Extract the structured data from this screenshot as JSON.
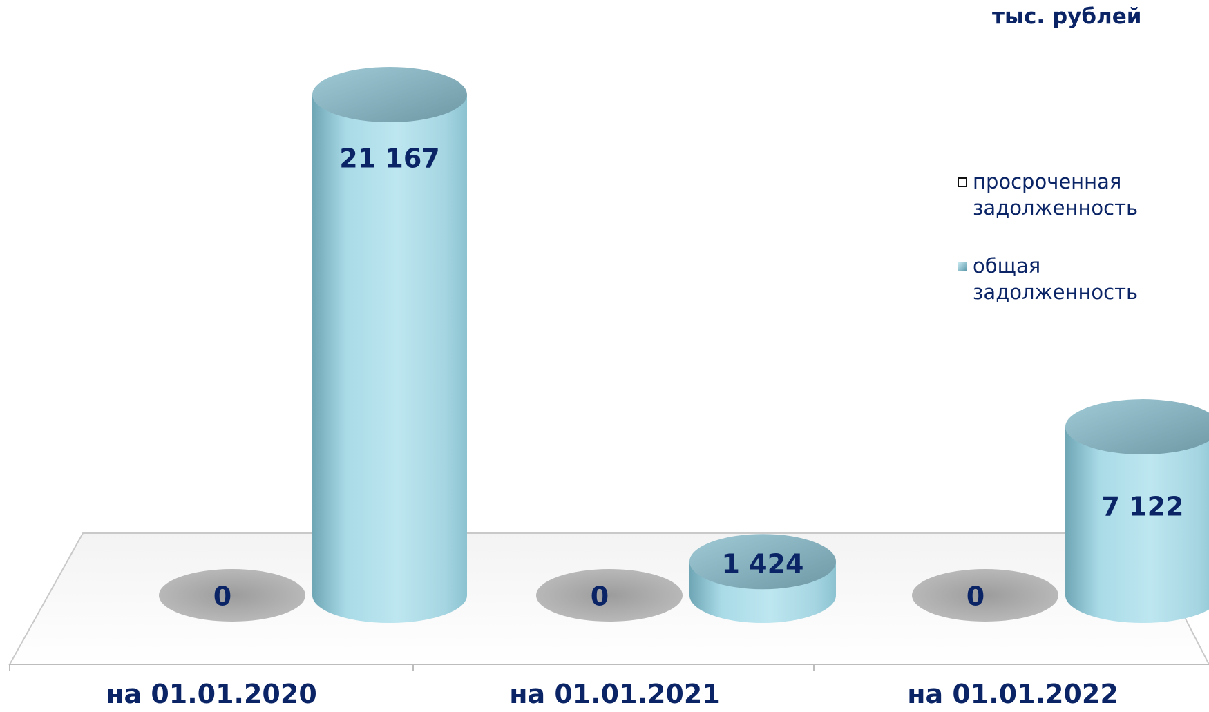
{
  "unit_label": "тыс. рублей",
  "chart_data": {
    "type": "bar",
    "style": "3d-cylinder",
    "categories": [
      "на 01.01.2020",
      "на 01.01.2021",
      "на 01.01.2022"
    ],
    "series": [
      {
        "name": "просроченная задолженность",
        "values": [
          0,
          0,
          0
        ],
        "value_labels": [
          "0",
          "0",
          "0"
        ]
      },
      {
        "name": "общая задолженность",
        "values": [
          21167,
          1424,
          7122
        ],
        "value_labels": [
          "21 167",
          "1 424",
          "7 122"
        ]
      }
    ],
    "legend_position": "right",
    "colors": {
      "series0": "#9a9a9a",
      "series1": "#a9dbe7",
      "text": "#0a2466"
    },
    "ylim": [
      0,
      21167
    ],
    "grid": false
  }
}
